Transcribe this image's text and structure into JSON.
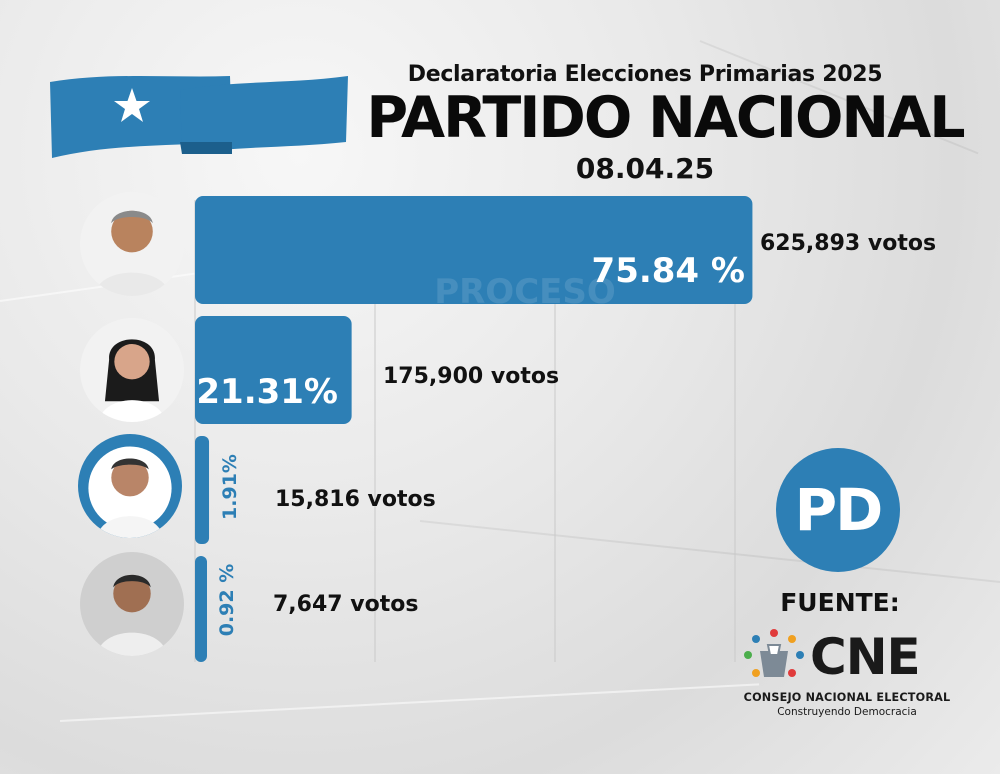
{
  "header": {
    "subtitle": "Declaratoria Elecciones Primarias 2025",
    "title": "PARTIDO NACIONAL",
    "date": "08.04.25"
  },
  "colors": {
    "bar": "#2d7fb5",
    "flag_blue": "#2d7fb5",
    "text": "#111111"
  },
  "watermark": "PROCESO",
  "badge": {
    "text": "PD"
  },
  "source": {
    "label": "FUENTE:",
    "logo_text": "CNE",
    "full_name": "CONSEJO NACIONAL ELECTORAL",
    "tagline": "Construyendo Democracia"
  },
  "chart_data": {
    "type": "bar",
    "orientation": "horizontal",
    "grid": true,
    "xlim": [
      0,
      100
    ],
    "series": [
      {
        "values": [
          75.84,
          21.31,
          1.91,
          0.92
        ],
        "percent_labels": [
          "75.84 %",
          "21.31%",
          "1.91%",
          "0.92 %"
        ],
        "vote_labels": [
          "625,893 votos",
          "175,900 votos",
          "15,816 votos",
          "7,647 votos"
        ],
        "votes": [
          625893,
          175900,
          15816,
          7647
        ]
      }
    ]
  },
  "candidates": [
    {
      "avatar_icon": "candidate-photo-icon"
    },
    {
      "avatar_icon": "candidate-photo-icon"
    },
    {
      "avatar_icon": "candidate-photo-icon"
    },
    {
      "avatar_icon": "candidate-photo-icon"
    }
  ]
}
